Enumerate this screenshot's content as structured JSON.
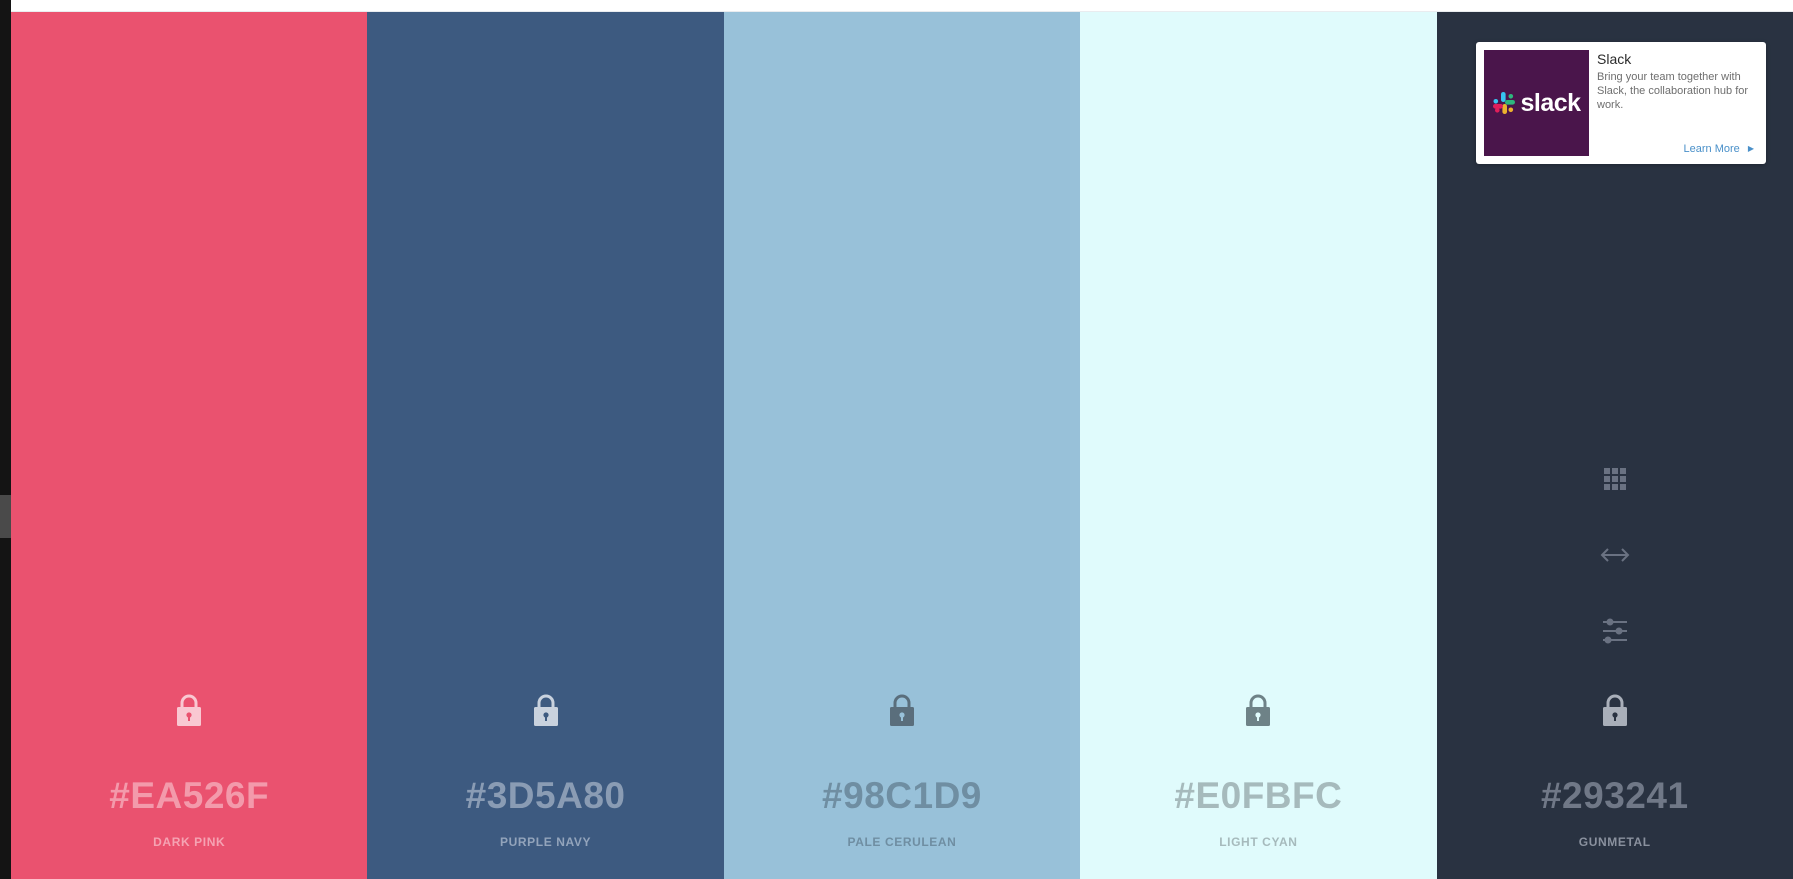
{
  "palette": [
    {
      "hex": "#EA526F",
      "name": "DARK PINK",
      "bg": "#EA526F",
      "hex_color": "#F39AAB",
      "name_color": "#F5A3B3",
      "lock_color": "#F9C8D2",
      "lock_hole": "#EA526F"
    },
    {
      "hex": "#3D5A80",
      "name": "PURPLE NAVY",
      "bg": "#3D5A80",
      "hex_color": "#8A9CB4",
      "name_color": "#93A4BB",
      "lock_color": "#C9D2DE",
      "lock_hole": "#3D5A80"
    },
    {
      "hex": "#98C1D9",
      "name": "PALE CERULEAN",
      "bg": "#98C1D9",
      "hex_color": "#6F8EA2",
      "name_color": "#6F8EA2",
      "lock_color": "#5A6E7C",
      "lock_hole": "#98C1D9"
    },
    {
      "hex": "#E0FBFC",
      "name": "LIGHT CYAN",
      "bg": "#E0FBFC",
      "hex_color": "#A6BABC",
      "name_color": "#A6BABC",
      "lock_color": "#6E8287",
      "lock_hole": "#E0FBFC"
    },
    {
      "hex": "#293241",
      "name": "GUNMETAL",
      "bg": "#293241",
      "hex_color": "#707887",
      "name_color": "#8A919E",
      "lock_color": "#A9AFB9",
      "lock_hole": "#293241"
    }
  ],
  "tools": [
    {
      "name": "view-grid-icon"
    },
    {
      "name": "expand-width-icon"
    },
    {
      "name": "adjust-sliders-icon"
    }
  ],
  "tool_icon_color": "#6A7282",
  "ad": {
    "image_text": "slack",
    "title": "Slack",
    "text": "Bring your team together with Slack, the collaboration hub for work.",
    "cta": "Learn More",
    "cta_icon": "caret-right-icon",
    "brand_bg": "#4A154B"
  }
}
